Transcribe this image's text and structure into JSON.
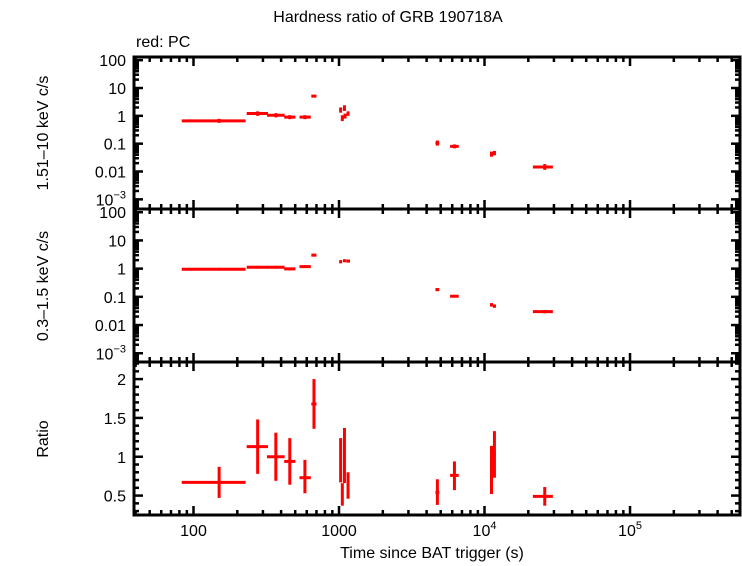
{
  "chart_data": {
    "type": "scatter",
    "title": "Hardness ratio of GRB 190718A",
    "legend_note": "red: PC",
    "xlabel": "Time since BAT trigger (s)",
    "xscale": "log",
    "xlim": [
      39,
      570000
    ],
    "x_ticks": [
      {
        "value": 100,
        "label": "100"
      },
      {
        "value": 1000,
        "label": "1000"
      },
      {
        "value": 10000,
        "label": "10",
        "exp": "4"
      },
      {
        "value": 100000,
        "label": "10",
        "exp": "5"
      }
    ],
    "series_color": "#ff0000",
    "panels": [
      {
        "id": "hard",
        "ylabel": "1.51–10 keV c/s",
        "yscale": "log",
        "ylim": [
          0.00045,
          130
        ],
        "y_ticks": [
          {
            "value": 100,
            "label": "100"
          },
          {
            "value": 10,
            "label": "10"
          },
          {
            "value": 1,
            "label": "1"
          },
          {
            "value": 0.1,
            "label": "0.1"
          },
          {
            "value": 0.01,
            "label": "0.01"
          },
          {
            "value": 0.001,
            "label": "10",
            "exp": "−3"
          }
        ],
        "points": [
          {
            "x": 150,
            "xlo": 83,
            "xhi": 228,
            "y": 0.66,
            "ylo": 0.56,
            "yhi": 0.78
          },
          {
            "x": 276,
            "xlo": 232,
            "xhi": 325,
            "y": 1.22,
            "ylo": 1.0,
            "yhi": 1.45
          },
          {
            "x": 368,
            "xlo": 320,
            "xhi": 423,
            "y": 1.05,
            "ylo": 0.88,
            "yhi": 1.25
          },
          {
            "x": 459,
            "xlo": 420,
            "xhi": 502,
            "y": 0.9,
            "ylo": 0.76,
            "yhi": 1.06
          },
          {
            "x": 583,
            "xlo": 535,
            "xhi": 640,
            "y": 0.9,
            "ylo": 0.76,
            "yhi": 1.06
          },
          {
            "x": 673,
            "xlo": 645,
            "xhi": 700,
            "y": 5.1,
            "ylo": 4.6,
            "yhi": 5.7
          },
          {
            "x": 1026,
            "xlo": 1015,
            "xhi": 1037,
            "y": 1.6,
            "ylo": 1.3,
            "yhi": 2.0
          },
          {
            "x": 1090,
            "xlo": 1080,
            "xhi": 1100,
            "y": 1.9,
            "ylo": 1.5,
            "yhi": 2.4
          },
          {
            "x": 1054,
            "xlo": 1045,
            "xhi": 1064,
            "y": 0.85,
            "ylo": 0.65,
            "yhi": 1.05
          },
          {
            "x": 1154,
            "xlo": 1130,
            "xhi": 1180,
            "y": 1.2,
            "ylo": 1.0,
            "yhi": 1.45
          },
          {
            "x": 1100,
            "xlo": 1090,
            "xhi": 1112,
            "y": 1.0,
            "ylo": 0.8,
            "yhi": 1.2
          },
          {
            "x": 4743,
            "xlo": 4600,
            "xhi": 4890,
            "y": 0.105,
            "ylo": 0.085,
            "yhi": 0.13
          },
          {
            "x": 6213,
            "xlo": 5800,
            "xhi": 6650,
            "y": 0.08,
            "ylo": 0.068,
            "yhi": 0.094
          },
          {
            "x": 11170,
            "xlo": 10950,
            "xhi": 11400,
            "y": 0.042,
            "ylo": 0.034,
            "yhi": 0.052
          },
          {
            "x": 11700,
            "xlo": 11450,
            "xhi": 11950,
            "y": 0.046,
            "ylo": 0.038,
            "yhi": 0.055
          },
          {
            "x": 25940,
            "xlo": 21500,
            "xhi": 29500,
            "y": 0.0145,
            "ylo": 0.0115,
            "yhi": 0.0185
          }
        ]
      },
      {
        "id": "soft",
        "ylabel": "0.3–1.5 keV c/s",
        "yscale": "log",
        "ylim": [
          0.00049,
          130
        ],
        "y_ticks": [
          {
            "value": 100,
            "label": "100"
          },
          {
            "value": 10,
            "label": "10"
          },
          {
            "value": 1,
            "label": "1"
          },
          {
            "value": 0.1,
            "label": "0.1"
          },
          {
            "value": 0.01,
            "label": "0.01"
          },
          {
            "value": 0.001,
            "label": "10",
            "exp": "−3"
          }
        ],
        "points": [
          {
            "x": 150,
            "xlo": 83,
            "xhi": 228,
            "y": 0.95,
            "ylo": 0.85,
            "yhi": 1.07
          },
          {
            "x": 276,
            "xlo": 232,
            "xhi": 325,
            "y": 1.12,
            "ylo": 1.0,
            "yhi": 1.26
          },
          {
            "x": 368,
            "xlo": 320,
            "xhi": 423,
            "y": 1.12,
            "ylo": 1.0,
            "yhi": 1.26
          },
          {
            "x": 459,
            "xlo": 420,
            "xhi": 502,
            "y": 0.98,
            "ylo": 0.86,
            "yhi": 1.1
          },
          {
            "x": 583,
            "xlo": 535,
            "xhi": 640,
            "y": 1.18,
            "ylo": 1.05,
            "yhi": 1.32
          },
          {
            "x": 673,
            "xlo": 645,
            "xhi": 700,
            "y": 3.0,
            "ylo": 2.7,
            "yhi": 3.4
          },
          {
            "x": 1026,
            "xlo": 1010,
            "xhi": 1045,
            "y": 1.75,
            "ylo": 1.55,
            "yhi": 2.0
          },
          {
            "x": 1090,
            "xlo": 1070,
            "xhi": 1110,
            "y": 1.9,
            "ylo": 1.7,
            "yhi": 2.15
          },
          {
            "x": 1154,
            "xlo": 1120,
            "xhi": 1190,
            "y": 1.85,
            "ylo": 1.65,
            "yhi": 2.1
          },
          {
            "x": 4743,
            "xlo": 4600,
            "xhi": 4890,
            "y": 0.18,
            "ylo": 0.16,
            "yhi": 0.205
          },
          {
            "x": 6213,
            "xlo": 5800,
            "xhi": 6650,
            "y": 0.105,
            "ylo": 0.095,
            "yhi": 0.117
          },
          {
            "x": 11170,
            "xlo": 10950,
            "xhi": 11400,
            "y": 0.052,
            "ylo": 0.045,
            "yhi": 0.06
          },
          {
            "x": 11700,
            "xlo": 11450,
            "xhi": 11950,
            "y": 0.047,
            "ylo": 0.041,
            "yhi": 0.054
          },
          {
            "x": 25940,
            "xlo": 21500,
            "xhi": 29500,
            "y": 0.03,
            "ylo": 0.026,
            "yhi": 0.034
          }
        ]
      },
      {
        "id": "ratio",
        "ylabel": "Ratio",
        "yscale": "linear",
        "ylim": [
          0.25,
          2.22
        ],
        "y_ticks": [
          {
            "value": 2,
            "label": "2"
          },
          {
            "value": 1.5,
            "label": "1.5"
          },
          {
            "value": 1,
            "label": "1"
          },
          {
            "value": 0.5,
            "label": "0.5"
          }
        ],
        "points": [
          {
            "x": 150,
            "xlo": 83,
            "xhi": 228,
            "y": 0.67,
            "ylo": 0.47,
            "yhi": 0.87
          },
          {
            "x": 276,
            "xlo": 232,
            "xhi": 325,
            "y": 1.13,
            "ylo": 0.78,
            "yhi": 1.48
          },
          {
            "x": 368,
            "xlo": 320,
            "xhi": 423,
            "y": 1.0,
            "ylo": 0.69,
            "yhi": 1.31
          },
          {
            "x": 459,
            "xlo": 420,
            "xhi": 502,
            "y": 0.94,
            "ylo": 0.64,
            "yhi": 1.24
          },
          {
            "x": 583,
            "xlo": 535,
            "xhi": 640,
            "y": 0.73,
            "ylo": 0.53,
            "yhi": 0.96
          },
          {
            "x": 673,
            "xlo": 645,
            "xhi": 700,
            "y": 1.68,
            "ylo": 1.36,
            "yhi": 2.0
          },
          {
            "x": 1026,
            "xlo": 1015,
            "xhi": 1037,
            "y": 0.96,
            "ylo": 0.67,
            "yhi": 1.24
          },
          {
            "x": 1090,
            "xlo": 1080,
            "xhi": 1100,
            "y": 1.05,
            "ylo": 0.66,
            "yhi": 1.37
          },
          {
            "x": 1054,
            "xlo": 1045,
            "xhi": 1064,
            "y": 0.51,
            "ylo": 0.37,
            "yhi": 0.66
          },
          {
            "x": 1154,
            "xlo": 1130,
            "xhi": 1180,
            "y": 0.64,
            "ylo": 0.46,
            "yhi": 0.8
          },
          {
            "x": 4743,
            "xlo": 4600,
            "xhi": 4890,
            "y": 0.54,
            "ylo": 0.38,
            "yhi": 0.71
          },
          {
            "x": 6213,
            "xlo": 5800,
            "xhi": 6650,
            "y": 0.76,
            "ylo": 0.57,
            "yhi": 0.94
          },
          {
            "x": 11170,
            "xlo": 10950,
            "xhi": 11400,
            "y": 0.84,
            "ylo": 0.52,
            "yhi": 1.14
          },
          {
            "x": 11700,
            "xlo": 11450,
            "xhi": 11950,
            "y": 1.02,
            "ylo": 0.73,
            "yhi": 1.33
          },
          {
            "x": 25940,
            "xlo": 21500,
            "xhi": 29500,
            "y": 0.49,
            "ylo": 0.37,
            "yhi": 0.61
          }
        ]
      }
    ]
  }
}
